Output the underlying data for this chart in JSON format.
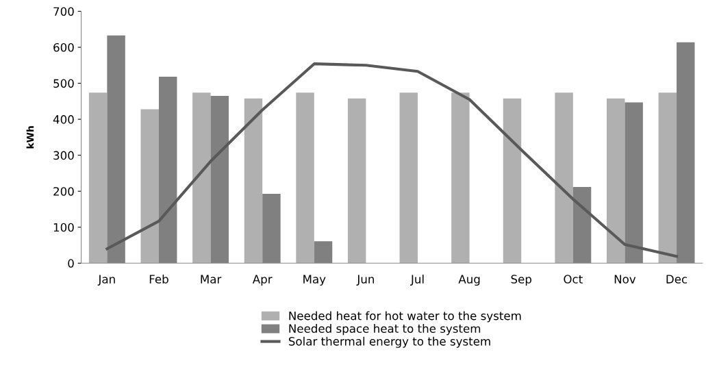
{
  "chart_data": {
    "type": "bar",
    "ylabel": "kWh",
    "categories": [
      "Jan",
      "Feb",
      "Mar",
      "Apr",
      "May",
      "Jun",
      "Jul",
      "Aug",
      "Sep",
      "Oct",
      "Nov",
      "Dec"
    ],
    "series": [
      {
        "name": "Needed heat for hot water to the system",
        "color": "#b0b0b0",
        "values": [
          474,
          428,
          474,
          458,
          474,
          458,
          474,
          474,
          458,
          474,
          458,
          474
        ]
      },
      {
        "name": "Needed space heat to the system",
        "color": "#808080",
        "values": [
          633,
          518,
          465,
          193,
          61,
          0,
          0,
          0,
          0,
          212,
          447,
          614
        ]
      },
      {
        "name": "Solar thermal energy to the system",
        "type": "line",
        "color": "#595959",
        "values": [
          40,
          117,
          283,
          426,
          554,
          550,
          533,
          455,
          315,
          178,
          52,
          19
        ]
      }
    ],
    "ylim": [
      0,
      700
    ],
    "yticks": [
      0,
      100,
      200,
      300,
      400,
      500,
      600,
      700
    ],
    "grid": false,
    "legend": "bottom",
    "marker": "none",
    "line_style": "solid"
  }
}
